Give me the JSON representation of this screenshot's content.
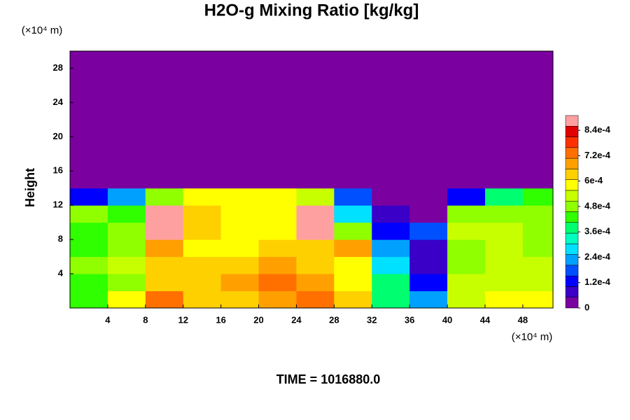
{
  "chart_data": {
    "type": "contour",
    "title": "H2O-g Mixing Ratio [kg/kg]",
    "y_unit": "(×10⁴ m)",
    "x_unit": "(×10⁴ m)",
    "ylabel": "Height",
    "footer": "TIME = 1016880.0",
    "xlim": [
      0,
      51.2
    ],
    "ylim": [
      0,
      30
    ],
    "xticks": [
      4,
      8,
      12,
      16,
      20,
      24,
      28,
      32,
      36,
      40,
      44,
      48
    ],
    "yticks": [
      4,
      8,
      12,
      16,
      20,
      24,
      28
    ],
    "x": [
      2,
      6,
      10,
      14,
      18,
      22,
      26,
      30,
      34,
      38,
      42,
      46,
      50
    ],
    "y": [
      1,
      3,
      5,
      7,
      9,
      11,
      13,
      15,
      17,
      19,
      21,
      23,
      25,
      27,
      29
    ],
    "z": [
      [
        0.00045,
        0.0006,
        0.00075,
        0.00065,
        0.00065,
        0.0007,
        0.00075,
        0.00065,
        0.0004,
        0.00025,
        0.00055,
        0.0006,
        0.0006
      ],
      [
        0.00045,
        0.0005,
        0.00065,
        0.00065,
        0.0007,
        0.00075,
        0.0007,
        0.0006,
        0.0004,
        0.00015,
        0.00055,
        0.00055,
        0.00055
      ],
      [
        0.0005,
        0.00055,
        0.00065,
        0.00065,
        0.00065,
        0.0007,
        0.00065,
        0.0006,
        0.0003,
        0.0001,
        0.0005,
        0.00055,
        0.00055
      ],
      [
        0.00045,
        0.0005,
        0.0007,
        0.0006,
        0.0006,
        0.00065,
        0.00065,
        0.0007,
        0.00025,
        0.0001,
        0.0005,
        0.00055,
        0.0005
      ],
      [
        0.00045,
        0.0005,
        0.00088,
        0.00065,
        0.0006,
        0.0006,
        0.00088,
        0.0005,
        0.00015,
        0.0002,
        0.00055,
        0.00055,
        0.0005
      ],
      [
        0.0005,
        0.00045,
        0.00088,
        0.00065,
        0.0006,
        0.0006,
        0.00088,
        0.0003,
        0.0001,
        5e-05,
        0.0005,
        0.0005,
        0.0005
      ],
      [
        0.00015,
        0.00025,
        0.0005,
        0.0006,
        0.0006,
        0.0006,
        0.00055,
        0.0002,
        5e-05,
        0,
        0.00015,
        0.0004,
        0.00045
      ],
      [
        0,
        0,
        0,
        0,
        0,
        0,
        0,
        0,
        0,
        0,
        0,
        0,
        0
      ],
      [
        0,
        0,
        0,
        0,
        0,
        0,
        0,
        0,
        0,
        0,
        0,
        0,
        0
      ],
      [
        0,
        0,
        0,
        0,
        0,
        0,
        0,
        0,
        0,
        0,
        0,
        0,
        0
      ],
      [
        0,
        0,
        0,
        0,
        0,
        0,
        0,
        0,
        0,
        0,
        0,
        0,
        0
      ],
      [
        0,
        0,
        0,
        0,
        0,
        0,
        0,
        0,
        0,
        0,
        0,
        0,
        0
      ],
      [
        0,
        0,
        0,
        0,
        0,
        0,
        0,
        0,
        0,
        0,
        0,
        0,
        0
      ],
      [
        0,
        0,
        0,
        0,
        0,
        0,
        0,
        0,
        0,
        0,
        0,
        0,
        0
      ],
      [
        0,
        0,
        0,
        0,
        0,
        0,
        0,
        0,
        0,
        0,
        0,
        0,
        0
      ]
    ],
    "clim": [
      0,
      0.00091
    ],
    "cticks": [
      0,
      {
        "value": 0.00012,
        "label": "1.2e-4"
      },
      {
        "value": 0.00024,
        "label": "2.4e-4"
      },
      {
        "value": 0.00036,
        "label": "3.6e-4"
      },
      {
        "value": 0.00048,
        "label": "4.8e-4"
      },
      {
        "value": 0.0006,
        "label": "6e-4"
      },
      {
        "value": 0.00072,
        "label": "7.2e-4"
      },
      {
        "value": 0.00084,
        "label": "8.4e-4"
      }
    ],
    "colormap": [
      "#7a00a0",
      "#3a00c8",
      "#0000ff",
      "#0050ff",
      "#00a0ff",
      "#00e0ff",
      "#00ffc0",
      "#00ff70",
      "#30ff00",
      "#90ff00",
      "#c8ff00",
      "#ffff00",
      "#ffd000",
      "#ffa000",
      "#ff7000",
      "#ff3000",
      "#e00000",
      "#ffa0a0"
    ]
  }
}
